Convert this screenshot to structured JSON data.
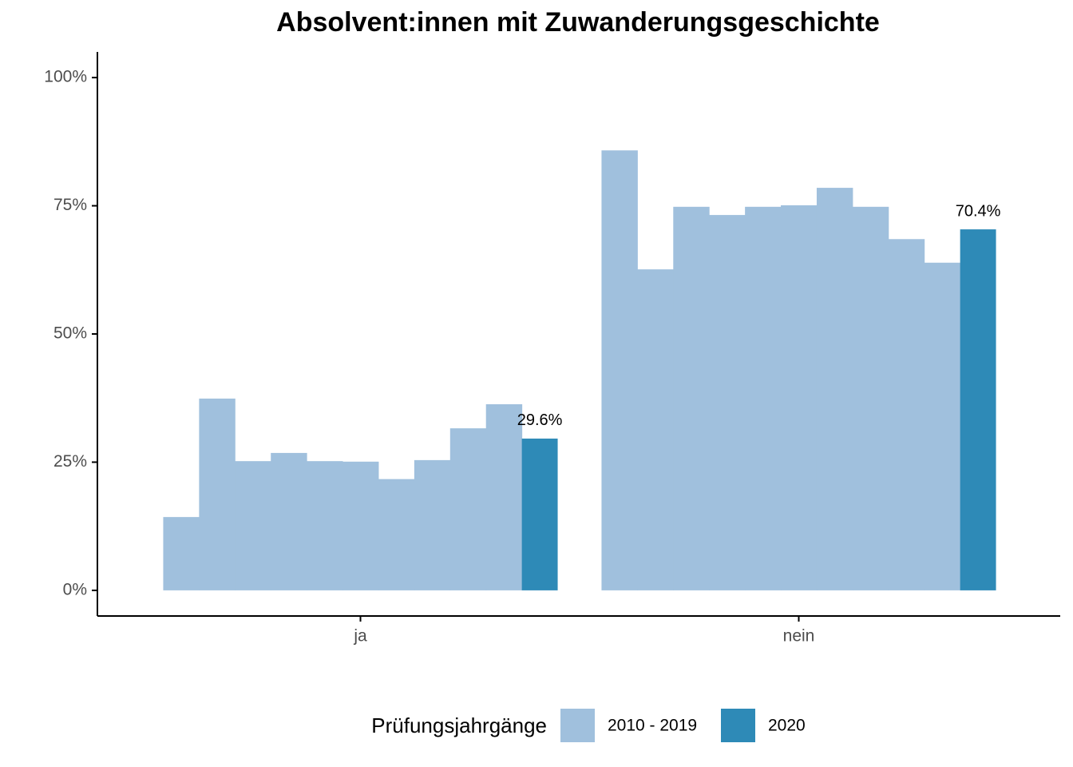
{
  "chart_data": {
    "type": "grouped_bar",
    "title": "Absolvent:innen mit Zuwanderungsgeschichte",
    "categories": [
      "ja",
      "nein"
    ],
    "series": [
      {
        "name": "2010 - 2019",
        "color": "#a0c0dd",
        "values": [
          [
            14.3,
            37.4,
            25.2,
            26.8,
            25.2,
            25.1,
            21.7,
            25.4,
            31.6,
            36.3
          ],
          [
            85.8,
            62.6,
            74.8,
            73.2,
            74.8,
            75.1,
            78.5,
            74.8,
            68.5,
            63.9
          ]
        ]
      },
      {
        "name": "2020",
        "color": "#2e8ab7",
        "values": [
          29.6,
          70.4
        ],
        "value_labels": [
          "29.6%",
          "70.4%"
        ]
      }
    ],
    "legend_title": "Prüfungsjahrgänge",
    "ylim": [
      -5,
      105
    ],
    "yticks": [
      {
        "value": 0,
        "label": "0%"
      },
      {
        "value": 25,
        "label": "25%"
      },
      {
        "value": 50,
        "label": "50%"
      },
      {
        "value": 75,
        "label": "75%"
      },
      {
        "value": 100,
        "label": "100%"
      }
    ]
  }
}
